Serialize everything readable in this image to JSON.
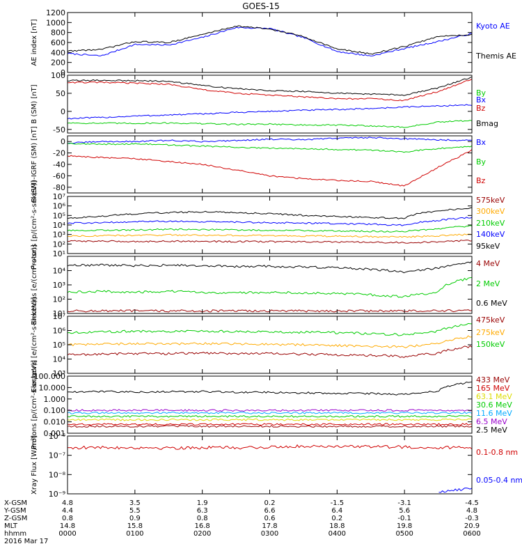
{
  "title": "GOES-15",
  "date": "2016 Mar 17",
  "colors": {
    "black": "#000000",
    "blue": "#0000ff",
    "green": "#00cc00",
    "red": "#d00000",
    "darkred": "#990000",
    "orange": "#ffaa00",
    "cyan": "#00aaff",
    "yellow": "#dddd00",
    "purple": "#9900cc"
  },
  "footer": {
    "rows": [
      {
        "label": "X-GSM",
        "values": [
          "4.8",
          "3.5",
          "1.9",
          "0.2",
          "-1.5",
          "-3.1",
          "-4.5"
        ]
      },
      {
        "label": "Y-GSM",
        "values": [
          "4.4",
          "5.5",
          "6.3",
          "6.6",
          "6.4",
          "5.6",
          "4.8"
        ]
      },
      {
        "label": "Z-GSM",
        "values": [
          "0.8",
          "0.9",
          "0.8",
          "0.6",
          "0.2",
          "-0.1",
          "-0.3"
        ]
      },
      {
        "label": "MLT",
        "values": [
          "14.8",
          "15.8",
          "16.8",
          "17.8",
          "18.8",
          "19.8",
          "20.9"
        ]
      },
      {
        "label": "hhmm",
        "values": [
          "0000",
          "0100",
          "0200",
          "0300",
          "0400",
          "0500",
          "0600"
        ]
      }
    ]
  },
  "chart_data": [
    {
      "type": "line",
      "ylabel": "AE index [nT]",
      "yscale": "linear",
      "ylim": [
        0,
        1200
      ],
      "yticks": [
        "0",
        "200",
        "400",
        "600",
        "800",
        "1000",
        "1200"
      ],
      "x": [
        "0000",
        "0030",
        "0100",
        "0130",
        "0200",
        "0230",
        "0300",
        "0330",
        "0400",
        "0430",
        "0500",
        "0530",
        "0600"
      ],
      "series": [
        {
          "name": "Kyoto AE",
          "color": "#0000ff",
          "values": [
            380,
            330,
            560,
            550,
            700,
            900,
            880,
            700,
            420,
            330,
            480,
            620,
            780
          ]
        },
        {
          "name": "Themis AE",
          "color": "#000000",
          "values": [
            430,
            460,
            620,
            600,
            760,
            930,
            870,
            720,
            470,
            370,
            520,
            720,
            760
          ]
        }
      ]
    },
    {
      "type": "line",
      "ylabel": "B (SM) [nT]",
      "yscale": "linear",
      "ylim": [
        -60,
        100
      ],
      "yticks": [
        "-50",
        "0",
        "50",
        "100"
      ],
      "x": [
        "0000",
        "0030",
        "0100",
        "0130",
        "0200",
        "0230",
        "0300",
        "0330",
        "0400",
        "0430",
        "0500",
        "0530",
        "0600"
      ],
      "series": [
        {
          "name": "Bx",
          "color": "#0000ff",
          "values": [
            -20,
            -17,
            -13,
            -10,
            -7,
            -3,
            0,
            3,
            5,
            8,
            12,
            15,
            18
          ]
        },
        {
          "name": "By",
          "color": "#00cc00",
          "values": [
            -32,
            -33,
            -33,
            -32,
            -34,
            -36,
            -35,
            -38,
            -38,
            -40,
            -44,
            -30,
            -25
          ]
        },
        {
          "name": "Bz",
          "color": "#d00000",
          "values": [
            80,
            80,
            78,
            75,
            60,
            50,
            45,
            40,
            35,
            35,
            30,
            55,
            90
          ]
        },
        {
          "name": "Bmag",
          "color": "#000000",
          "values": [
            85,
            86,
            85,
            83,
            72,
            63,
            58,
            55,
            50,
            48,
            45,
            65,
            95
          ]
        }
      ]
    },
    {
      "type": "line",
      "ylabel": "B (SM)-IGRF (SM) [nT]",
      "yscale": "linear",
      "ylim": [
        -90,
        10
      ],
      "yticks": [
        "-80",
        "-60",
        "-40",
        "-20",
        "0"
      ],
      "x": [
        "0000",
        "0030",
        "0100",
        "0130",
        "0200",
        "0230",
        "0300",
        "0330",
        "0400",
        "0430",
        "0500",
        "0530",
        "0600"
      ],
      "series": [
        {
          "name": "Bx",
          "color": "#0000ff",
          "values": [
            -3,
            0,
            0,
            2,
            0,
            2,
            4,
            3,
            6,
            7,
            5,
            3,
            2
          ]
        },
        {
          "name": "By",
          "color": "#00cc00",
          "values": [
            -3,
            -5,
            -4,
            -6,
            -8,
            -10,
            -12,
            -12,
            -14,
            -15,
            -18,
            -12,
            -8
          ]
        },
        {
          "name": "Bz",
          "color": "#d00000",
          "values": [
            -25,
            -28,
            -30,
            -35,
            -40,
            -50,
            -60,
            -65,
            -68,
            -70,
            -78,
            -45,
            -15
          ]
        }
      ]
    },
    {
      "type": "line",
      "ylabel": "Protons [p/(cm²-s-sr-keV)]",
      "yscale": "log",
      "ylim": [
        10,
        10000000
      ],
      "yticks": [
        "10¹",
        "10²",
        "10³",
        "10⁴",
        "10⁵",
        "10⁶",
        "10⁷"
      ],
      "x": [
        "0000",
        "0030",
        "0100",
        "0130",
        "0200",
        "0230",
        "0300",
        "0330",
        "0400",
        "0430",
        "0500",
        "0530",
        "0600"
      ],
      "series": [
        {
          "name": "575keV",
          "color": "#990000",
          "values": [
            200,
            200,
            180,
            200,
            190,
            180,
            180,
            170,
            160,
            150,
            140,
            160,
            250
          ]
        },
        {
          "name": "300keV",
          "color": "#ffaa00",
          "values": [
            700,
            750,
            800,
            900,
            850,
            800,
            750,
            700,
            650,
            600,
            550,
            700,
            1100
          ]
        },
        {
          "name": "210keV",
          "color": "#00cc00",
          "values": [
            2500,
            2800,
            3000,
            3500,
            3200,
            3000,
            2800,
            2600,
            2400,
            2200,
            2000,
            4000,
            8000
          ]
        },
        {
          "name": "140keV",
          "color": "#0000ff",
          "values": [
            15000,
            18000,
            22000,
            25000,
            22000,
            20000,
            18000,
            16000,
            14000,
            12000,
            9000,
            30000,
            60000
          ]
        },
        {
          "name": "95keV",
          "color": "#000000",
          "values": [
            50000,
            80000,
            150000,
            200000,
            250000,
            200000,
            150000,
            100000,
            80000,
            60000,
            50000,
            300000,
            600000
          ]
        }
      ]
    },
    {
      "type": "line",
      "ylabel": "Electrons [e/(cm²-s-sr)]",
      "yscale": "log",
      "ylim": [
        10,
        100000
      ],
      "yticks": [
        "10¹",
        "10²",
        "10³",
        "10⁴"
      ],
      "x": [
        "0000",
        "0030",
        "0100",
        "0130",
        "0200",
        "0230",
        "0300",
        "0330",
        "0400",
        "0430",
        "0500",
        "0530",
        "0600"
      ],
      "series": [
        {
          "name": "4 MeV",
          "color": "#990000",
          "values": [
            15,
            15,
            15,
            15,
            15,
            15,
            15,
            15,
            15,
            15,
            15,
            15,
            16
          ]
        },
        {
          "name": "2 MeV",
          "color": "#00cc00",
          "values": [
            300,
            350,
            300,
            350,
            300,
            280,
            300,
            280,
            250,
            200,
            150,
            300,
            3000
          ]
        },
        {
          "name": "0.6 MeV",
          "color": "#000000",
          "values": [
            22000,
            25000,
            22000,
            24000,
            22000,
            20000,
            20000,
            18000,
            16000,
            12000,
            8000,
            15000,
            40000
          ]
        }
      ]
    },
    {
      "type": "line",
      "ylabel": "Electrons [e/(cm²-s-sr-keV)]",
      "yscale": "log",
      "ylim": [
        1000,
        10000000
      ],
      "yticks": [
        "10³",
        "10⁴",
        "10⁵",
        "10⁶",
        "10⁷"
      ],
      "x": [
        "0000",
        "0030",
        "0100",
        "0130",
        "0200",
        "0230",
        "0300",
        "0330",
        "0400",
        "0430",
        "0500",
        "0530",
        "0600"
      ],
      "series": [
        {
          "name": "475keV",
          "color": "#990000",
          "values": [
            20000,
            22000,
            25000,
            24000,
            26000,
            25000,
            24000,
            22000,
            20000,
            18000,
            15000,
            25000,
            80000
          ]
        },
        {
          "name": "275keV",
          "color": "#ffaa00",
          "values": [
            100000,
            110000,
            120000,
            115000,
            120000,
            115000,
            110000,
            100000,
            90000,
            80000,
            70000,
            120000,
            400000
          ]
        },
        {
          "name": "150keV",
          "color": "#00cc00",
          "values": [
            700000,
            800000,
            900000,
            850000,
            900000,
            850000,
            800000,
            750000,
            700000,
            600000,
            500000,
            900000,
            3000000
          ]
        }
      ]
    },
    {
      "type": "line",
      "ylabel": "Protons [p/(cm²-s-sr-keV)]",
      "yscale": "log",
      "ylim": [
        0.001,
        100
      ],
      "yticks": [
        "0.001",
        "0.010",
        "0.100",
        "1.000",
        "10.000",
        "100.000"
      ],
      "x": [
        "0000",
        "0030",
        "0100",
        "0130",
        "0200",
        "0230",
        "0300",
        "0330",
        "0400",
        "0430",
        "0500",
        "0530",
        "0600"
      ],
      "series": [
        {
          "name": "433 MeV",
          "color": "#990000",
          "values": [
            0.004,
            0.004,
            0.004,
            0.004,
            0.004,
            0.004,
            0.004,
            0.004,
            0.004,
            0.004,
            0.004,
            0.004,
            0.004
          ]
        },
        {
          "name": "165 MeV",
          "color": "#d00000",
          "values": [
            0.006,
            0.006,
            0.006,
            0.006,
            0.006,
            0.006,
            0.006,
            0.006,
            0.006,
            0.006,
            0.006,
            0.006,
            0.006
          ]
        },
        {
          "name": "63.1 MeV",
          "color": "#dddd00",
          "values": [
            0.015,
            0.015,
            0.015,
            0.015,
            0.015,
            0.015,
            0.015,
            0.015,
            0.015,
            0.015,
            0.015,
            0.015,
            0.015
          ]
        },
        {
          "name": "30.6 MeV",
          "color": "#00cc00",
          "values": [
            0.03,
            0.03,
            0.03,
            0.03,
            0.03,
            0.03,
            0.03,
            0.03,
            0.03,
            0.03,
            0.03,
            0.03,
            0.03
          ]
        },
        {
          "name": "11.6 MeV",
          "color": "#00aaff",
          "values": [
            0.06,
            0.06,
            0.06,
            0.06,
            0.06,
            0.06,
            0.06,
            0.06,
            0.06,
            0.06,
            0.06,
            0.06,
            0.06
          ]
        },
        {
          "name": "6.5 MeV",
          "color": "#9900cc",
          "values": [
            0.1,
            0.1,
            0.1,
            0.1,
            0.1,
            0.1,
            0.1,
            0.1,
            0.1,
            0.1,
            0.1,
            0.1,
            0.1
          ]
        },
        {
          "name": "2.5 MeV",
          "color": "#000000",
          "values": [
            4,
            4.5,
            4,
            4.2,
            4.5,
            4,
            3.8,
            3.5,
            3.2,
            3,
            2.5,
            5,
            30
          ]
        }
      ]
    },
    {
      "type": "line",
      "ylabel": "Xray Flux [W/m²]",
      "yscale": "log",
      "ylim": [
        1e-09,
        1e-06
      ],
      "yticks": [
        "10⁻⁹",
        "10⁻⁸",
        "10⁻⁷",
        "10⁻⁶"
      ],
      "x": [
        "0000",
        "0030",
        "0100",
        "0130",
        "0200",
        "0230",
        "0300",
        "0330",
        "0400",
        "0430",
        "0500",
        "0530",
        "0600"
      ],
      "series": [
        {
          "name": "0.1-0.8 nm",
          "color": "#d00000",
          "values": [
            2.5e-07,
            2.5e-07,
            2.5e-07,
            2.4e-07,
            2.5e-07,
            2.5e-07,
            2.6e-07,
            3e-07,
            3e-07,
            2.8e-07,
            2.7e-07,
            2.5e-07,
            2.5e-07
          ]
        },
        {
          "name": "0.05-0.4 nm",
          "color": "#0000ff",
          "values": [
            null,
            null,
            null,
            null,
            null,
            null,
            null,
            null,
            null,
            null,
            null,
            1.2e-09,
            2e-09
          ]
        }
      ]
    }
  ]
}
